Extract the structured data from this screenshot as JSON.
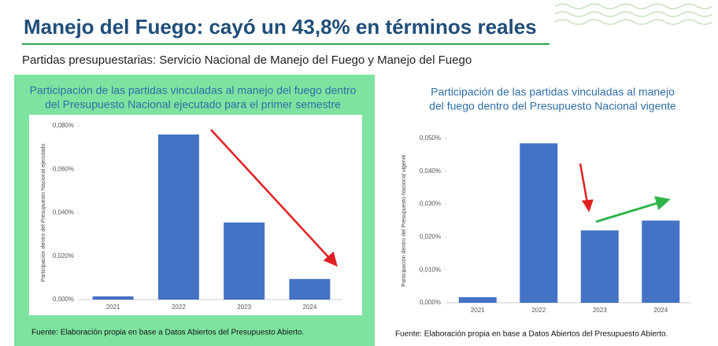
{
  "header": {
    "title": "Manejo del Fuego: cayó un 43,8% en términos reales",
    "subtitle": "Partidas presupuestarias: Servicio Nacional de Manejo del Fuego y Manejo del Fuego"
  },
  "chart_data": [
    {
      "type": "bar",
      "title": [
        "Participación de las partidas vinculadas al manejo del  fuego dentro",
        "del Presupuesto Nacional ejecutado para el primer semestre"
      ],
      "y_label": "Participación dentro del Presupuesto Nacional ejecutado",
      "categories": [
        "2021",
        "2022",
        "2023",
        "2024"
      ],
      "values": [
        0.0015,
        0.076,
        0.0355,
        0.0095
      ],
      "color": "#4472c4",
      "ylim": [
        0,
        0.08
      ],
      "yticks": [
        {
          "value": 0,
          "label": "0,000%"
        },
        {
          "value": 0.02,
          "label": "0,020%"
        },
        {
          "value": 0.04,
          "label": "0,040%"
        },
        {
          "value": 0.06,
          "label": "0,060%"
        },
        {
          "value": 0.08,
          "label": "0,080%"
        }
      ],
      "grid": false,
      "note": "Fuente: Elaboración propia en base a Datos Abiertos del Presupuesto Abierto."
    },
    {
      "type": "bar",
      "title": [
        "Participación de las partidas vinculadas al manejo",
        "del fuego dentro del Presupuesto Nacional vigente"
      ],
      "y_label": "Participación dentro del Presupuesto Nacional vigente",
      "categories": [
        "2021",
        "2022",
        "2023",
        "2024"
      ],
      "values": [
        0.0017,
        0.0485,
        0.022,
        0.025
      ],
      "color": "#4472c4",
      "ylim": [
        0,
        0.05
      ],
      "yticks": [
        {
          "value": 0,
          "label": "0,000%"
        },
        {
          "value": 0.01,
          "label": "0,010%"
        },
        {
          "value": 0.02,
          "label": "0,020%"
        },
        {
          "value": 0.03,
          "label": "0,030%"
        },
        {
          "value": 0.04,
          "label": "0,040%"
        },
        {
          "value": 0.05,
          "label": "0,050%"
        }
      ],
      "grid": false,
      "note": "Fuente: Elaboración propia en base a Datos Abiertos del Presupuesto Abierto."
    }
  ]
}
